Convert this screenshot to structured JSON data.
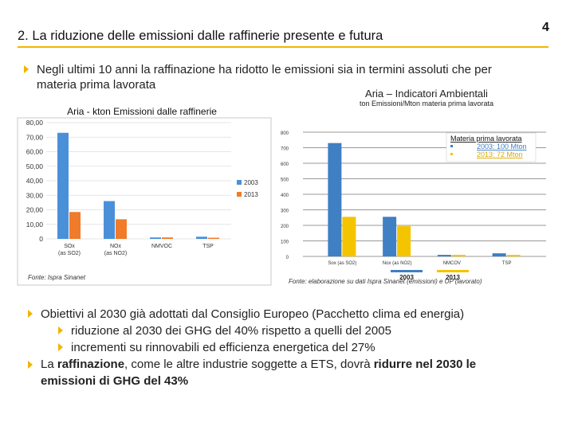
{
  "page": {
    "title": "2. La riduzione delle emissioni dalle raffinerie presente e futura",
    "page_number": "4",
    "accent_color": "#f2b400",
    "intro_bullet": "Negli ultimi 10 anni  la raffinazione  ha ridotto le emissioni sia in termini assoluti che per materia prima lavorata"
  },
  "footer": {
    "bullet1": "Obiettivi al 2030 già adottati dal Consiglio Europeo (Pacchetto clima ed energia)",
    "sub1": "riduzione al 2030 dei GHG del 40% rispetto a quelli del 2005",
    "sub2": "incrementi su rinnovabili ed efficienza energetica del 27%",
    "bullet2_a": "La ",
    "bullet2_b": "raffinazione",
    "bullet2_c": ", come le altre industrie soggette a ETS,  dovrà ",
    "bullet2_d": "ridurre nel 2030 le emissioni di GHG del 43%"
  },
  "chart_data": [
    {
      "type": "bar",
      "title": "Aria  - kton Emissioni dalle raffinerie",
      "categories": [
        "SOx (as SO2)",
        "NOx (as NO2)",
        "NMVOC",
        "TSP"
      ],
      "tick_lines": [
        [
          "SOx",
          "(as SO2)"
        ],
        [
          "NOx",
          "(as NO2)"
        ],
        [
          "NMVOC"
        ],
        [
          "TSP"
        ]
      ],
      "series": [
        {
          "name": "2003",
          "color": "#4a90d9",
          "values": [
            73,
            26,
            1,
            1.5
          ]
        },
        {
          "name": "2013",
          "color": "#f07b2a",
          "values": [
            18.5,
            13.5,
            1,
            0.8
          ]
        }
      ],
      "ylim": [
        0,
        80
      ],
      "yticks": [
        "0",
        "10,00",
        "20,00",
        "30,00",
        "40,00",
        "50,00",
        "60,00",
        "70,00",
        "80,00"
      ],
      "source": "Fonte: Ispra  Sinanet"
    },
    {
      "type": "bar",
      "title": "Aria – Indicatori Ambientali",
      "subtitle": "ton Emissioni/Mton materia prima lavorata",
      "categories": [
        "Sox (as SO2)",
        "Nox (as NO2)",
        "NMCOV",
        "TSP"
      ],
      "series": [
        {
          "name": "2003",
          "color": "#3f7fc4",
          "values": [
            730,
            255,
            10,
            20
          ]
        },
        {
          "name": "2013",
          "color": "#f5c400",
          "values": [
            255,
            195,
            10,
            10
          ]
        }
      ],
      "ylim": [
        0,
        800
      ],
      "yticks": [
        "0",
        "100",
        "200",
        "300",
        "400",
        "500",
        "600",
        "700",
        "800"
      ],
      "annotation": {
        "heading": "Materia prima lavorata",
        "line1": "2003: 100 Mton",
        "line2": "2013:  72 Mton"
      },
      "source": "Fonte: elaborazione su dati Ispra Sinanet (emissioni) e UP (lavorato)"
    }
  ]
}
